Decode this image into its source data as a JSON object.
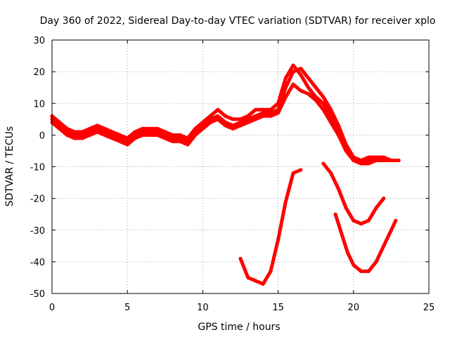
{
  "chart_data": {
    "type": "line",
    "title": "Day 360 of 2022, Sidereal Day-to-day VTEC variation (SDTVAR) for receiver xplo",
    "xlabel": "GPS time / hours",
    "ylabel": "SDTVAR / TECUs",
    "xlim": [
      0,
      25
    ],
    "ylim": [
      -50,
      30
    ],
    "xticks": [
      0,
      5,
      10,
      15,
      20,
      25
    ],
    "yticks": [
      30,
      20,
      10,
      0,
      -10,
      -20,
      -30,
      -40,
      -50
    ],
    "xtick_labels": [
      "0",
      "5",
      "10",
      "15",
      "20",
      "25"
    ],
    "ytick_labels": [
      "30",
      "20",
      "10",
      "0",
      "-10",
      "-20",
      "-30",
      "-40",
      "-50"
    ],
    "grid": true,
    "color": "#ff0000",
    "series": [
      {
        "name": "trace-main",
        "x": [
          0,
          0.5,
          1,
          1.5,
          2,
          2.5,
          3,
          3.5,
          4,
          4.5,
          5,
          5.5,
          6,
          6.5,
          7,
          7.5,
          8,
          8.5,
          9,
          9.5,
          10,
          10.5,
          11,
          11.5,
          12,
          12.5,
          13,
          13.5,
          14,
          14.5,
          15,
          15.5,
          16,
          16.5,
          17,
          17.5,
          18,
          18.5,
          19,
          19.5,
          20,
          20.5,
          21,
          21.5,
          22,
          22.5,
          23
        ],
        "values": [
          5,
          3,
          1,
          0,
          0,
          1,
          2,
          1,
          0,
          -1,
          -2,
          0,
          1,
          1,
          1,
          0,
          -1,
          -1,
          -2,
          1,
          3,
          5,
          6,
          4,
          3,
          4,
          5,
          6,
          7,
          7,
          8,
          15,
          20,
          21,
          18,
          15,
          12,
          8,
          3,
          -3,
          -7,
          -8,
          -8,
          -8,
          -8,
          -8,
          -8
        ]
      },
      {
        "name": "trace-band-upper",
        "x": [
          0,
          0.5,
          1,
          1.5,
          2,
          2.5,
          3,
          3.5,
          4,
          4.5,
          5,
          5.5,
          6,
          6.5,
          7,
          7.5,
          8,
          8.5,
          9,
          9.5,
          10,
          10.5,
          11,
          11.5,
          12,
          12.5,
          13,
          13.5,
          14,
          14.5,
          15,
          15.5,
          16,
          16.5,
          17,
          17.5,
          18,
          18.5,
          19,
          19.5,
          20,
          20.5,
          21,
          21.5,
          22,
          22.5,
          23
        ],
        "values": [
          6,
          4,
          2,
          1,
          1,
          2,
          3,
          2,
          1,
          0,
          -1,
          1,
          2,
          2,
          2,
          1,
          0,
          0,
          -1,
          2,
          4,
          6,
          8,
          6,
          5,
          5,
          6,
          8,
          8,
          8,
          10,
          18,
          22,
          19,
          15,
          12,
          10,
          6,
          2,
          -4,
          -8,
          -8,
          -7,
          -7,
          -7,
          -8,
          -8
        ]
      },
      {
        "name": "trace-band-lower",
        "x": [
          0,
          0.5,
          1,
          1.5,
          2,
          2.5,
          3,
          3.5,
          4,
          4.5,
          5,
          5.5,
          6,
          6.5,
          7,
          7.5,
          8,
          8.5,
          9,
          9.5,
          10,
          10.5,
          11,
          11.5,
          12,
          12.5,
          13,
          13.5,
          14,
          14.5,
          15,
          15.5,
          16,
          16.5,
          17,
          17.5,
          18,
          18.5,
          19,
          19.5,
          20,
          20.5,
          21,
          21.5,
          22,
          22.5,
          23
        ],
        "values": [
          4,
          2,
          0,
          -1,
          -1,
          0,
          1,
          0,
          -1,
          -2,
          -3,
          -1,
          0,
          0,
          0,
          -1,
          -2,
          -2,
          -3,
          0,
          2,
          4,
          5,
          3,
          2,
          3,
          4,
          5,
          6,
          6,
          7,
          12,
          16,
          14,
          13,
          11,
          8,
          4,
          0,
          -5,
          -8,
          -9,
          -9,
          -8,
          -8,
          -8,
          -8
        ]
      },
      {
        "name": "trace-arc-1",
        "x": [
          12.5,
          13,
          13.5,
          14,
          14.5,
          15,
          15.5,
          16,
          16.5
        ],
        "values": [
          -39,
          -45,
          -46,
          -47,
          -43,
          -33,
          -21,
          -12,
          -11
        ]
      },
      {
        "name": "trace-arc-2",
        "x": [
          18,
          18.5,
          19,
          19.5,
          20,
          20.5,
          21,
          21.5,
          22
        ],
        "values": [
          -9,
          -12,
          -17,
          -23,
          -27,
          -28,
          -27,
          -23,
          -20
        ]
      },
      {
        "name": "trace-arc-3",
        "x": [
          18.8,
          19.2,
          19.6,
          20,
          20.5,
          21,
          21.5,
          22,
          22.5,
          22.8
        ],
        "values": [
          -25,
          -31,
          -37,
          -41,
          -43,
          -43,
          -40,
          -35,
          -30,
          -27
        ]
      }
    ]
  }
}
